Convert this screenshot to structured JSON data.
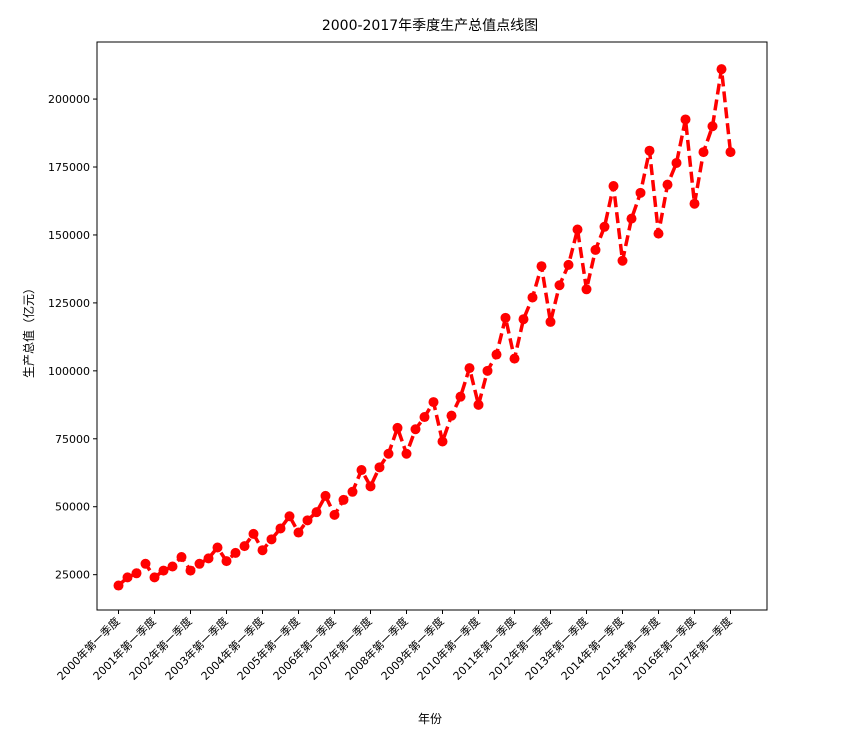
{
  "chart_data": {
    "type": "line",
    "title": "2000-2017年季度生产总值点线图",
    "xlabel": "年份",
    "ylabel": "生产总值（亿元）",
    "ylim": [
      12000,
      221000
    ],
    "yticks": [
      25000,
      50000,
      75000,
      100000,
      125000,
      150000,
      175000,
      200000
    ],
    "ytick_labels": [
      "25000",
      "50000",
      "75000",
      "100000",
      "125000",
      "150000",
      "175000",
      "200000"
    ],
    "xtick_labels": [
      "2000年第一季度",
      "2001年第一季度",
      "2002年第一季度",
      "2003年第一季度",
      "2004年第一季度",
      "2005年第一季度",
      "2006年第一季度",
      "2007年第一季度",
      "2008年第一季度",
      "2009年第一季度",
      "2010年第一季度",
      "2011年第一季度",
      "2012年第一季度",
      "2013年第一季度",
      "2014年第一季度",
      "2015年第一季度",
      "2016年第一季度",
      "2017年第一季度"
    ],
    "line_style": "dashed",
    "marker": "circle",
    "grid": false,
    "series": [
      {
        "color": "#ff0000",
        "values": [
          21000,
          24000,
          25500,
          29000,
          24000,
          26500,
          28000,
          31500,
          26500,
          29000,
          31000,
          35000,
          30000,
          33000,
          35500,
          40000,
          34000,
          38000,
          42000,
          46500,
          40500,
          45000,
          48000,
          54000,
          47000,
          52500,
          55500,
          63500,
          57500,
          64500,
          69500,
          79000,
          69500,
          78500,
          83000,
          88500,
          74000,
          83500,
          90500,
          101000,
          87500,
          100000,
          106000,
          119500,
          104500,
          119000,
          127000,
          138500,
          118000,
          131500,
          139000,
          152000,
          130000,
          144500,
          153000,
          168000,
          140500,
          156000,
          165500,
          181000,
          150500,
          168500,
          176500,
          192500,
          161500,
          180500,
          190000,
          211000,
          180500
        ]
      }
    ]
  }
}
